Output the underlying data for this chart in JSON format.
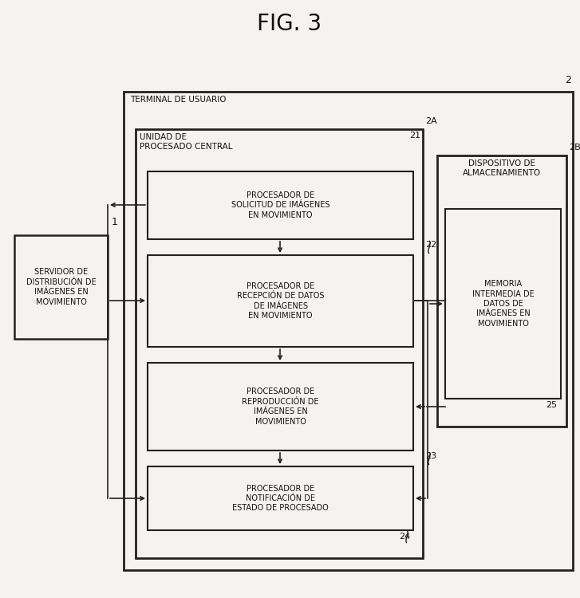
{
  "title": "FIG. 3",
  "bg_color": "#f5f3ef",
  "line_color": "#222222",
  "text_color": "#111111",
  "label_1": "1",
  "label_2": "2",
  "label_2A": "2A",
  "label_2B": "2B",
  "label_21": "21",
  "label_22": "22",
  "label_23": "23",
  "label_24": "24",
  "label_25": "25",
  "server_text": "SERVIDOR DE\nDISTRIBUCIÓN DE\nIMÁGENES EN\nMOVIMIENTO",
  "terminal_text": "TERMINAL DE USUARIO",
  "central_unit_text": "UNIDAD DE\nPROCESADO CENTRAL",
  "proc1_text": "PROCESADOR DE\nSOLICITUD DE IMÁGENES\nEN MOVIMIENTO",
  "proc2_text": "PROCESADOR DE\nRECEPCIÓN DE DATOS\nDE IMÁGENES\nEN MOVIMIENTO",
  "proc3_text": "PROCESADOR DE\nREPRODUCCIÓN DE\nIMÁGENES EN\nMOVIMIENTO",
  "proc4_text": "PROCESADOR DE\nNOTIFICACIÓN DE\nESTADO DE PROCESADO",
  "storage_text": "DISPOSITIVO DE\nALMACENAMIENTO",
  "memory_text": "MEMORIA\nINTERMEDIA DE\nDATOS DE\nIMÁGENES EN\nMOVIMIENTO",
  "font_size_title": 20,
  "font_size_box": 7,
  "font_size_number": 8,
  "font_size_header": 7.5
}
